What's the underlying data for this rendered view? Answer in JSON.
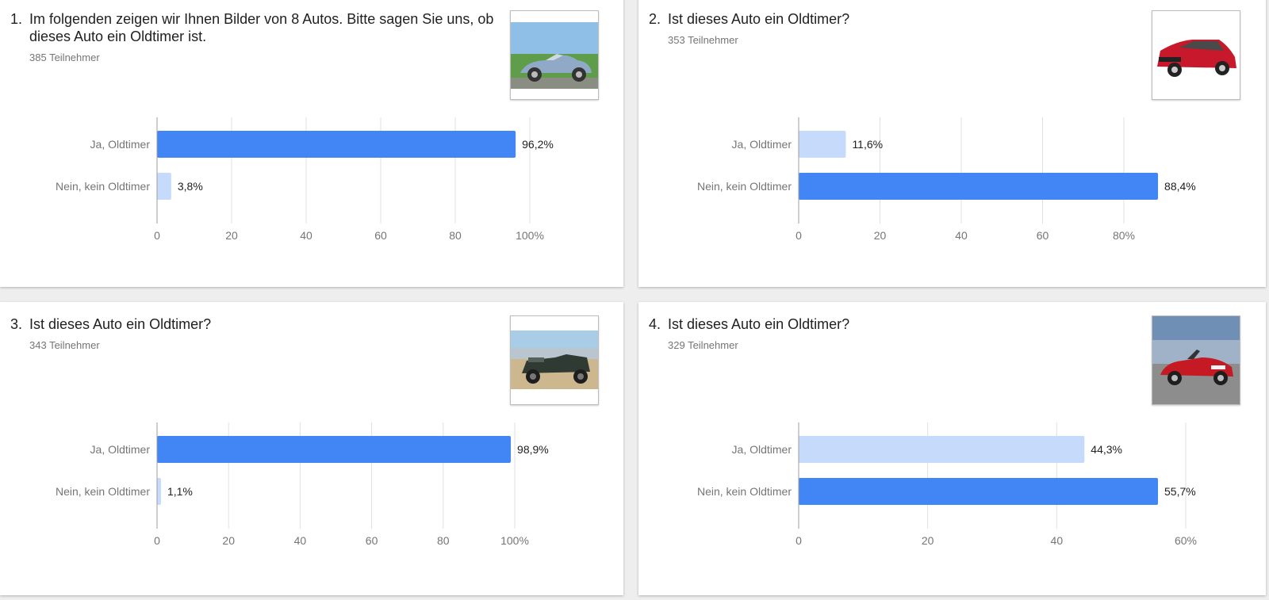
{
  "questions": [
    {
      "number": "1.",
      "title": "Im folgenden zeigen wir Ihnen Bilder von 8 Autos. Bitte sagen Sie uns, ob dieses Auto ein Oldtimer ist.",
      "participants": "385 Teilnehmer",
      "image": "light-blue-classic-roadster-photo"
    },
    {
      "number": "2.",
      "title": "Ist dieses Auto ein Oldtimer?",
      "participants": "353 Teilnehmer",
      "image": "red-hatchback-photo"
    },
    {
      "number": "3.",
      "title": "Ist dieses Auto ein Oldtimer?",
      "participants": "343 Teilnehmer",
      "image": "dark-green-vintage-open-car-photo"
    },
    {
      "number": "4.",
      "title": "Ist dieses Auto ein Oldtimer?",
      "participants": "329 Teilnehmer",
      "image": "red-convertible-roadster-photo"
    }
  ],
  "colors": {
    "primary_bar": "#4285f4",
    "secondary_bar": "#c6dafc",
    "gridline": "#e0e0e0",
    "axis": "#9e9e9e",
    "label": "#757575",
    "value_label": "#212121"
  },
  "chart_data": [
    {
      "type": "bar",
      "orientation": "horizontal",
      "categories": [
        "Ja, Oldtimer",
        "Nein, kein Oldtimer"
      ],
      "values": [
        96.2,
        3.8
      ],
      "value_labels": [
        "96,2%",
        "3,8%"
      ],
      "ticks": [
        0,
        20,
        40,
        60,
        80,
        100
      ],
      "tick_labels": [
        "0",
        "20",
        "40",
        "60",
        "80",
        "100%"
      ],
      "xlim": [
        0,
        100
      ],
      "grid": true
    },
    {
      "type": "bar",
      "orientation": "horizontal",
      "categories": [
        "Ja, Oldtimer",
        "Nein, kein Oldtimer"
      ],
      "values": [
        11.6,
        88.4
      ],
      "value_labels": [
        "11,6%",
        "88,4%"
      ],
      "ticks": [
        0,
        20,
        40,
        60,
        80
      ],
      "tick_labels": [
        "0",
        "20",
        "40",
        "60",
        "80%"
      ],
      "xlim": [
        0,
        80
      ],
      "grid": true
    },
    {
      "type": "bar",
      "orientation": "horizontal",
      "categories": [
        "Ja, Oldtimer",
        "Nein, kein Oldtimer"
      ],
      "values": [
        98.9,
        1.1
      ],
      "value_labels": [
        "98,9%",
        "1,1%"
      ],
      "ticks": [
        0,
        20,
        40,
        60,
        80,
        100
      ],
      "tick_labels": [
        "0",
        "20",
        "40",
        "60",
        "80",
        "100%"
      ],
      "xlim": [
        0,
        100
      ],
      "grid": true
    },
    {
      "type": "bar",
      "orientation": "horizontal",
      "categories": [
        "Ja, Oldtimer",
        "Nein, kein Oldtimer"
      ],
      "values": [
        44.3,
        55.7
      ],
      "value_labels": [
        "44,3%",
        "55,7%"
      ],
      "ticks": [
        0,
        20,
        40,
        60
      ],
      "tick_labels": [
        "0",
        "20",
        "40",
        "60%"
      ],
      "xlim": [
        0,
        60
      ],
      "grid": true
    }
  ]
}
